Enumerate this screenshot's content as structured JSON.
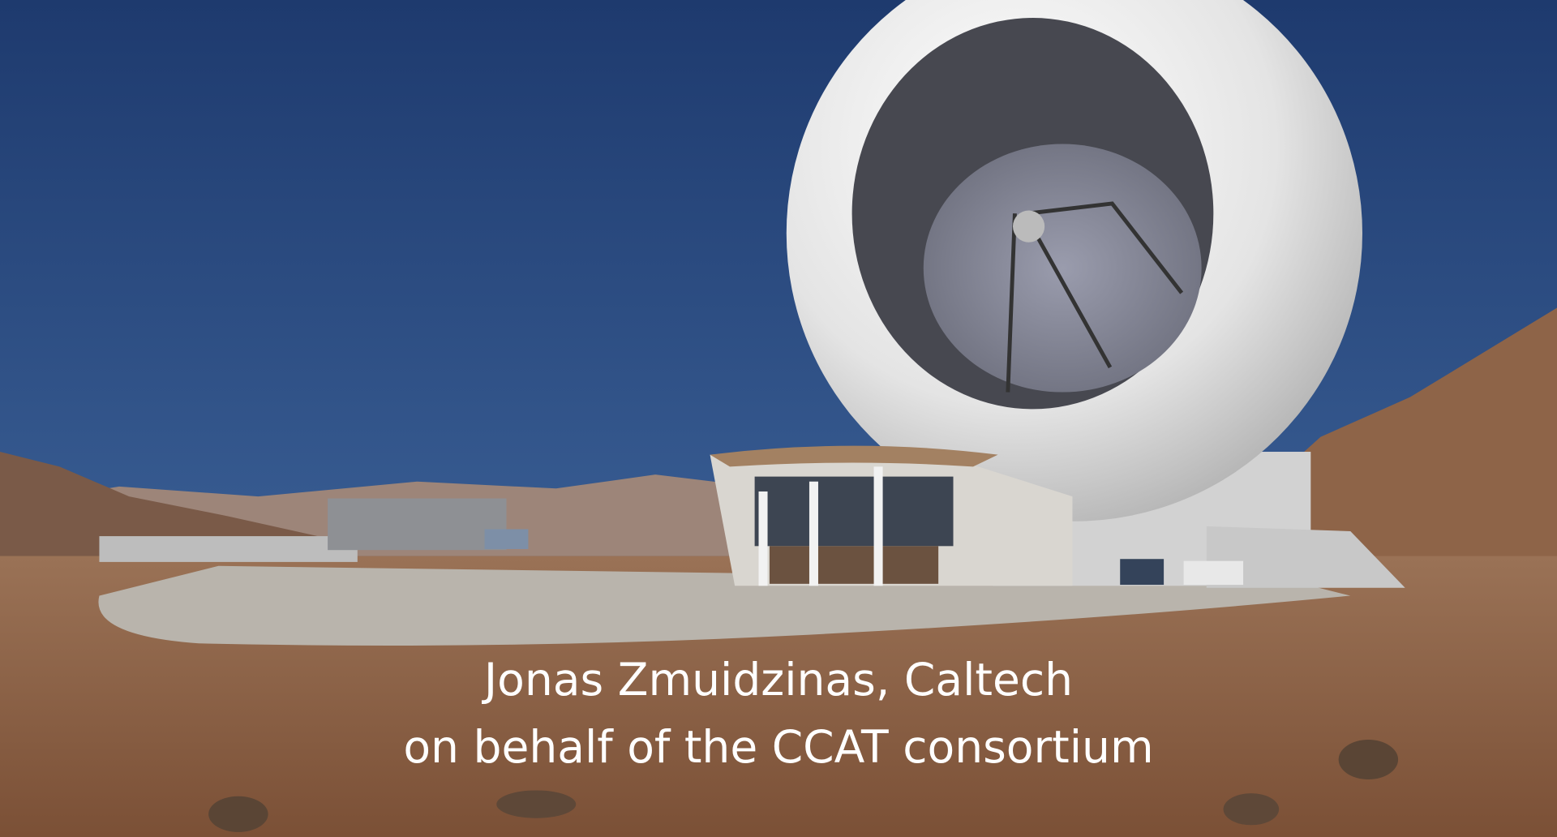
{
  "caption": {
    "line1": "Jonas Zmuidzinas, Caltech",
    "line2": "on behalf of the CCAT consortium"
  }
}
